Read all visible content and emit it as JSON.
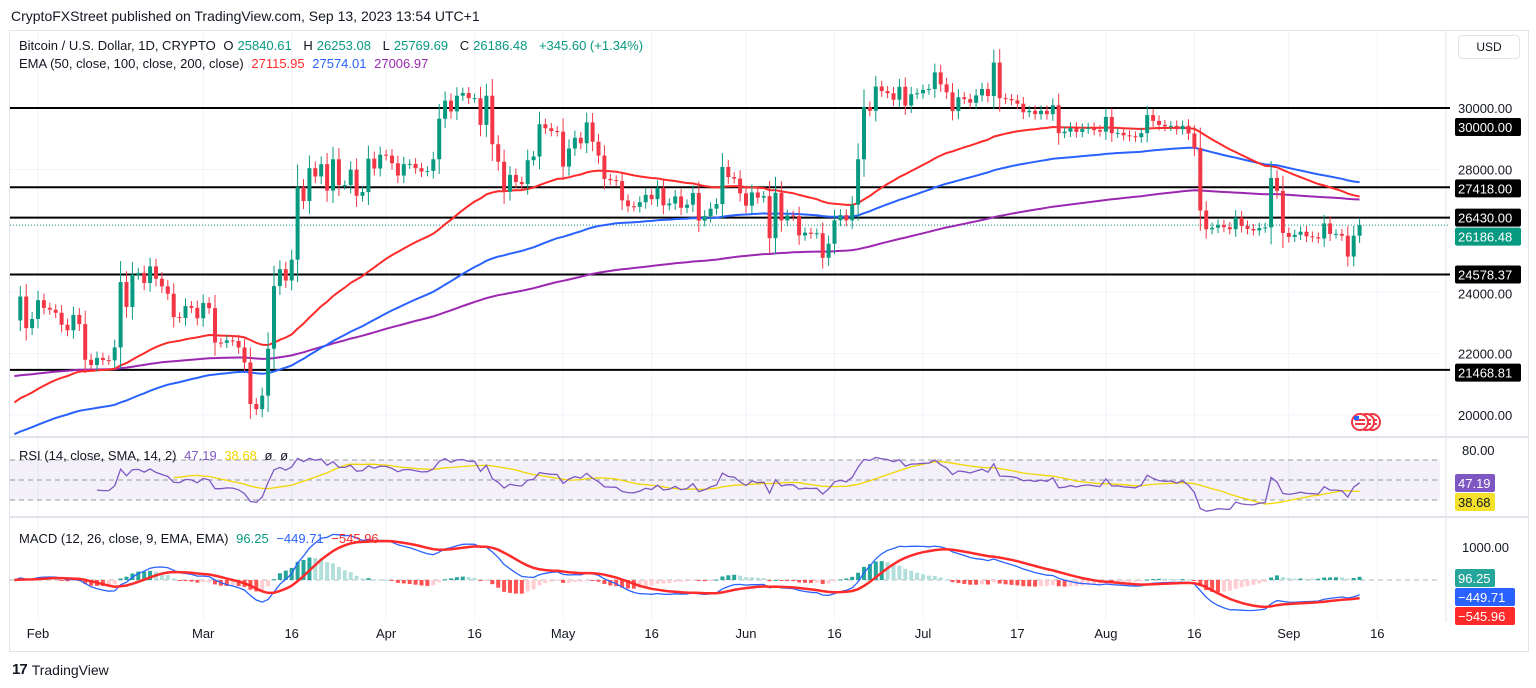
{
  "published": "CryptoFXStreet published on TradingView.com, Sep 13, 2023 13:54 UTC+1",
  "currency_button": "USD",
  "footer_logo": "TradingView",
  "legend": {
    "symbol": "Bitcoin / U.S. Dollar, 1D, CRYPTO",
    "o_label": "O",
    "o": "25840.61",
    "h_label": "H",
    "h": "26253.08",
    "l_label": "L",
    "l": "25769.69",
    "c_label": "C",
    "c": "26186.48",
    "change": "+345.60 (+1.34%)",
    "ema_label": "EMA (50, close, 100, close, 200, close)",
    "ema50": "27115.95",
    "ema100": "27574.01",
    "ema200": "27006.97",
    "rsi_label": "RSI (14, close, SMA, 14, 2)",
    "rsi": "47.19",
    "rsi_sma": "38.68",
    "rsi_extra1": "ø",
    "rsi_extra2": "ø",
    "macd_label": "MACD (12, 26, close, 9, EMA, EMA)",
    "macd_hist": "96.25",
    "macd_line": "−449.71",
    "macd_signal": "−545.96"
  },
  "colors": {
    "up": "#089981",
    "down": "#f23645",
    "ema50": "#ff2a2a",
    "ema100": "#2962ff",
    "ema200": "#9c27b0",
    "rsi": "#7e57c2",
    "rsi_sma": "#f2d600",
    "macd": "#2962ff",
    "signal": "#ff2a2a"
  },
  "chart_data": {
    "type": "candlestick",
    "title": "Bitcoin / U.S. Dollar, 1D, CRYPTO",
    "start_date": "2023-01-28",
    "closes": [
      23080,
      23860,
      22830,
      23130,
      23740,
      23490,
      23430,
      23330,
      22940,
      22760,
      23260,
      22960,
      21800,
      21630,
      21860,
      21790,
      21780,
      22200,
      24330,
      23520,
      24570,
      24630,
      24300,
      24840,
      24440,
      24190,
      23950,
      23190,
      23160,
      23550,
      23490,
      23150,
      23650,
      23480,
      22360,
      22350,
      22430,
      22410,
      22200,
      21710,
      20360,
      20190,
      20630,
      22160,
      24200,
      24750,
      24380,
      25060,
      27420,
      26970,
      28040,
      27770,
      28170,
      27310,
      28330,
      27490,
      27490,
      27990,
      27140,
      27260,
      28350,
      28030,
      28480,
      28450,
      28200,
      27800,
      28170,
      28180,
      28040,
      27930,
      27950,
      28330,
      29650,
      30240,
      29890,
      30400,
      30490,
      30320,
      30320,
      29450,
      30400,
      28820,
      28250,
      27270,
      27820,
      27590,
      27520,
      28300,
      28420,
      29470,
      29340,
      29250,
      29230,
      28090,
      28680,
      29030,
      28850,
      29530,
      28900,
      28450,
      27690,
      27650,
      27620,
      26990,
      26800,
      26780,
      26930,
      27170,
      27030,
      27400,
      26830,
      26890,
      27120,
      26750,
      26850,
      27230,
      26330,
      26480,
      26720,
      26870,
      28080,
      27750,
      27700,
      27220,
      26820,
      27250,
      27080,
      27130,
      25760,
      27240,
      26340,
      26500,
      26480,
      25850,
      25940,
      25900,
      25920,
      25120,
      25580,
      26340,
      26510,
      26340,
      26850,
      28330,
      30030,
      29910,
      30700,
      30550,
      30480,
      30270,
      30690,
      30080,
      30450,
      30480,
      30590,
      30620,
      31160,
      30770,
      30510,
      29900,
      30350,
      30290,
      30170,
      30410,
      30620,
      30390,
      31480,
      30320,
      30290,
      30250,
      30140,
      29860,
      29910,
      29800,
      29910,
      29800,
      30090,
      29180,
      29230,
      29350,
      29220,
      29320,
      29360,
      29280,
      29230,
      29710,
      29180,
      29190,
      29110,
      29080,
      29050,
      29180,
      29770,
      29580,
      29450,
      29400,
      29420,
      29310,
      29420,
      29170,
      28700,
      26660,
      26050,
      26100,
      26190,
      26120,
      26050,
      26430,
      26160,
      26060,
      26010,
      26090,
      26110,
      27720,
      27300,
      25930,
      25800,
      25870,
      25970,
      25820,
      25790,
      25750,
      26240,
      25900,
      25900,
      25840,
      25160,
      25840,
      26186.48
    ],
    "ema_seed": {
      "ema50": 20300,
      "ema100": 19300,
      "ema200": 21250
    },
    "x_ticks": [
      {
        "label": "Feb",
        "date": "2023-02-01"
      },
      {
        "label": "Mar",
        "date": "2023-03-01"
      },
      {
        "label": "16",
        "date": "2023-03-16"
      },
      {
        "label": "Apr",
        "date": "2023-04-01"
      },
      {
        "label": "16",
        "date": "2023-04-16"
      },
      {
        "label": "May",
        "date": "2023-05-01"
      },
      {
        "label": "16",
        "date": "2023-05-16"
      },
      {
        "label": "Jun",
        "date": "2023-06-01"
      },
      {
        "label": "16",
        "date": "2023-06-16"
      },
      {
        "label": "Jul",
        "date": "2023-07-01"
      },
      {
        "label": "17",
        "date": "2023-07-17"
      },
      {
        "label": "Aug",
        "date": "2023-08-01"
      },
      {
        "label": "16",
        "date": "2023-08-16"
      },
      {
        "label": "Sep",
        "date": "2023-09-01"
      },
      {
        "label": "16",
        "date": "2023-09-16"
      }
    ],
    "y_ticks": [
      "30000.00",
      "28000.00",
      "24000.00",
      "22000.00",
      "20000.00"
    ],
    "y_tick_values": [
      30000,
      28000,
      24000,
      22000,
      20000
    ],
    "ylim": [
      19000,
      32540
    ],
    "levels": [
      {
        "label": "30000.00",
        "value": 30000
      },
      {
        "label": "27418.00",
        "value": 27418
      },
      {
        "label": "26430.00",
        "value": 26430
      },
      {
        "label": "24578.37",
        "value": 24578.37
      },
      {
        "label": "21468.81",
        "value": 21468.81
      }
    ],
    "last_price": {
      "label": "26186.48",
      "value": 26186.48
    },
    "rsi_panel": {
      "tick": "80.00",
      "tick_value": 80,
      "bands": [
        70,
        50,
        30
      ]
    },
    "macd_panel": {
      "tick": "1000.00",
      "tick_value": 1000
    }
  }
}
